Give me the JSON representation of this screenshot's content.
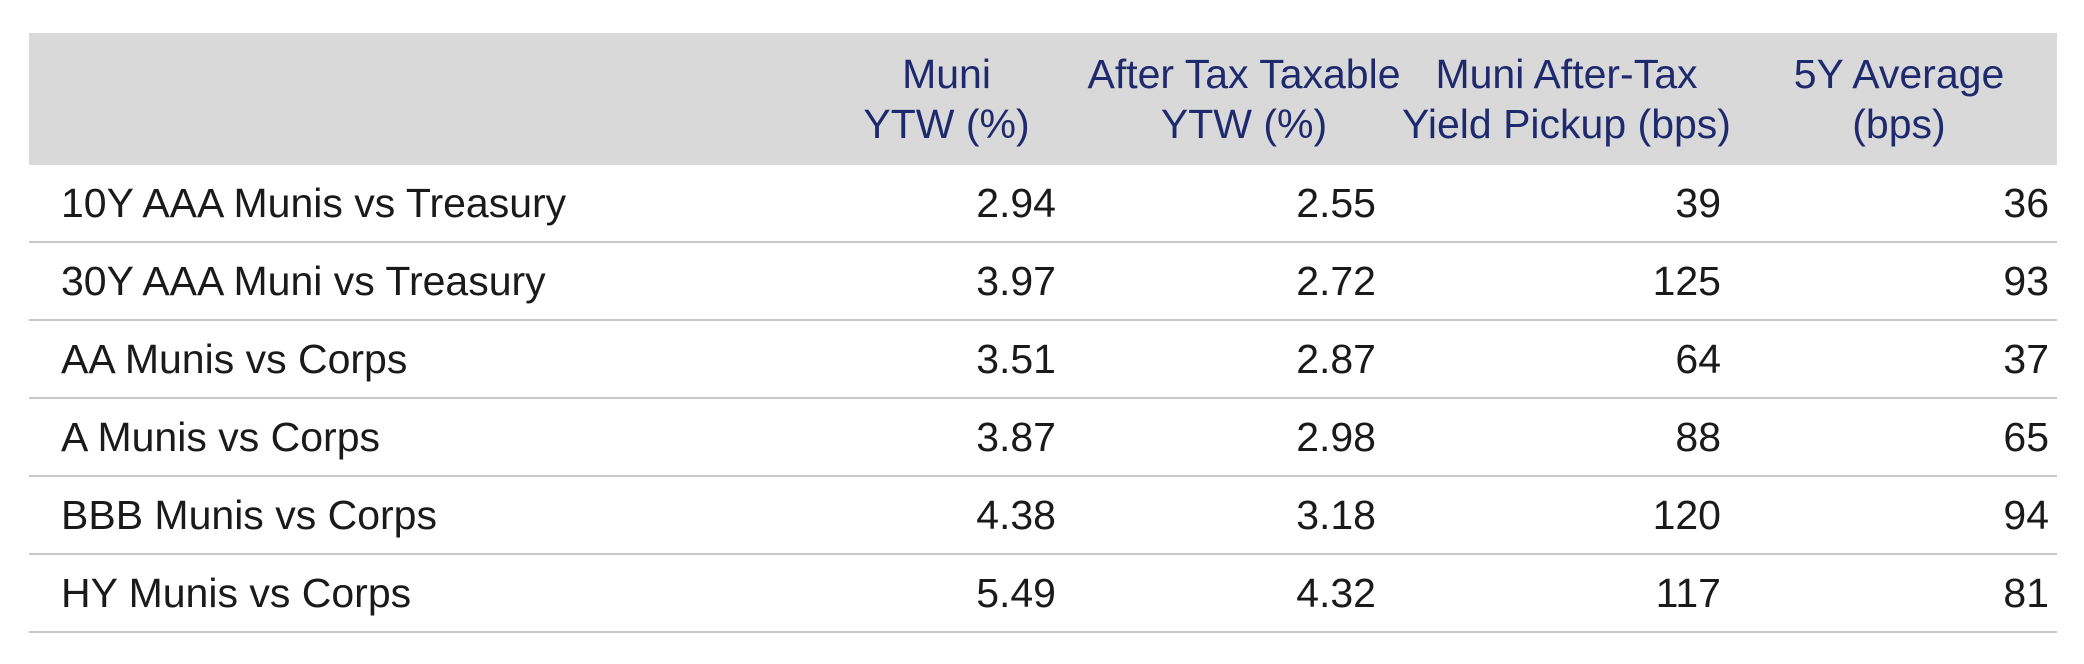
{
  "table": {
    "headers": [
      {
        "line1": "",
        "line2": ""
      },
      {
        "line1": "Muni",
        "line2": "YTW (%)"
      },
      {
        "line1": "After Tax Taxable",
        "line2": "YTW (%)"
      },
      {
        "line1": "Muni After-Tax",
        "line2": "Yield Pickup (bps)"
      },
      {
        "line1": "5Y Average",
        "line2": "(bps)"
      }
    ],
    "rows": [
      {
        "label": "10Y AAA Munis vs Treasury",
        "muni_ytw": "2.94",
        "after_tax_ytw": "2.55",
        "pickup": "39",
        "avg5y": "36"
      },
      {
        "label": "30Y AAA Muni vs Treasury",
        "muni_ytw": "3.97",
        "after_tax_ytw": "2.72",
        "pickup": "125",
        "avg5y": "93"
      },
      {
        "label": "AA Munis vs Corps",
        "muni_ytw": "3.51",
        "after_tax_ytw": "2.87",
        "pickup": "64",
        "avg5y": "37"
      },
      {
        "label": "A Munis vs Corps",
        "muni_ytw": "3.87",
        "after_tax_ytw": "2.98",
        "pickup": "88",
        "avg5y": "65"
      },
      {
        "label": "BBB Munis vs Corps",
        "muni_ytw": "4.38",
        "after_tax_ytw": "3.18",
        "pickup": "120",
        "avg5y": "94"
      },
      {
        "label": "HY Munis vs Corps",
        "muni_ytw": "5.49",
        "after_tax_ytw": "4.32",
        "pickup": "117",
        "avg5y": "81"
      }
    ]
  },
  "colors": {
    "header_bg": "#d9d9d9",
    "header_text": "#1f2a6e",
    "row_divider": "#c8c8c8",
    "body_text": "#1a1a1a"
  }
}
